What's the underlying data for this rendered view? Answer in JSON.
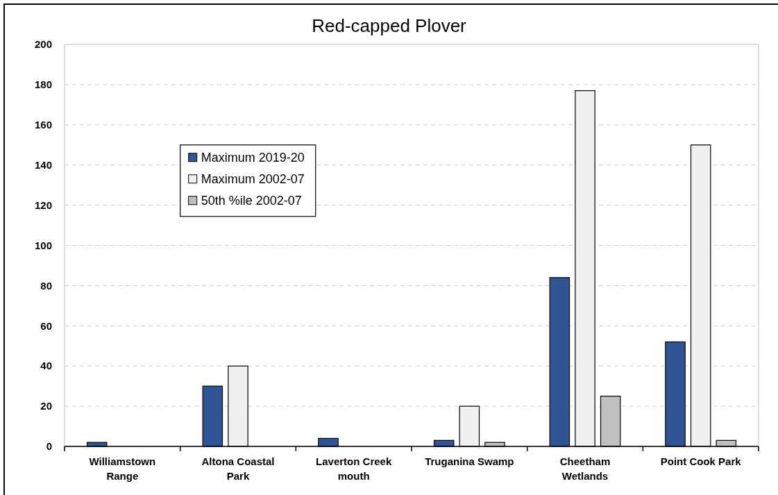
{
  "chart_data": {
    "type": "bar",
    "title": "Red-capped Plover",
    "categories": [
      "Williamstown Range",
      "Altona Coastal Park",
      "Laverton Creek mouth",
      "Truganina Swamp",
      "Cheetham Wetlands",
      "Point Cook Park"
    ],
    "series": [
      {
        "name": "Maximum 2019-20",
        "color": "#2f5597",
        "values": [
          2,
          30,
          4,
          3,
          84,
          52
        ]
      },
      {
        "name": "Maximum 2002-07",
        "color": "#f0f0f0",
        "values": [
          null,
          40,
          null,
          20,
          177,
          150
        ]
      },
      {
        "name": "50th %ile 2002-07",
        "color": "#bfbfbf",
        "values": [
          null,
          null,
          null,
          2,
          25,
          3
        ]
      }
    ],
    "ylim": [
      0,
      200
    ],
    "yticks": [
      0,
      20,
      40,
      60,
      80,
      100,
      120,
      140,
      160,
      180,
      200
    ],
    "grid": "y",
    "legend": "top left"
  }
}
